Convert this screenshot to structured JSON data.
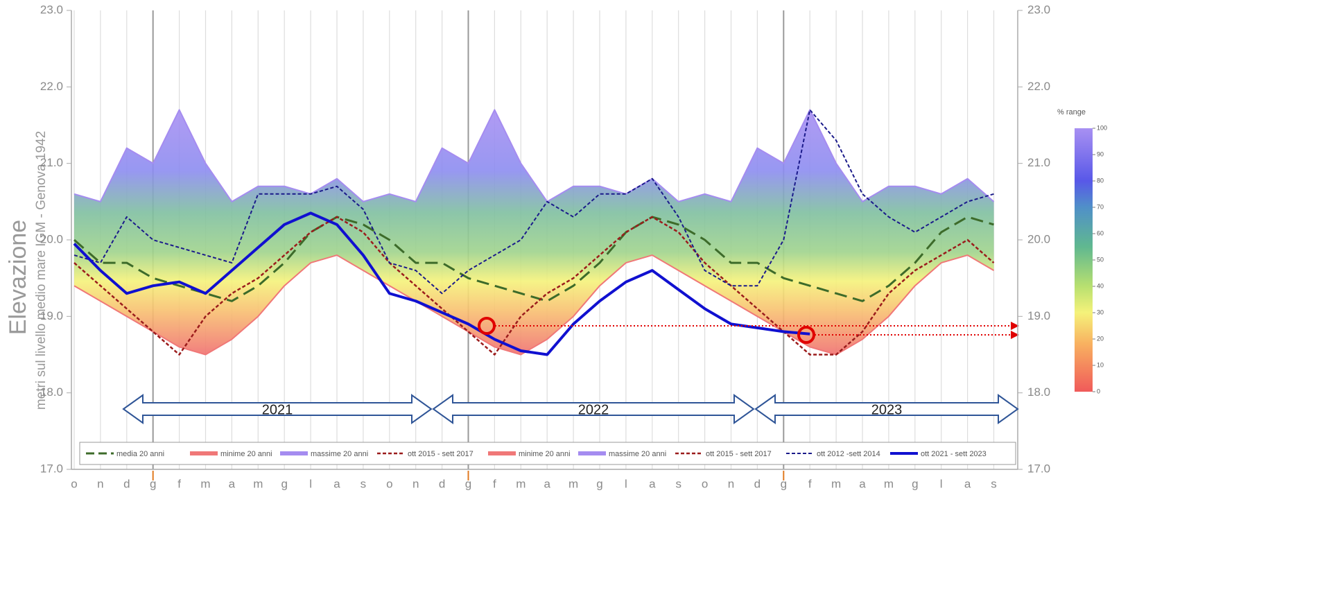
{
  "chart_data": {
    "type": "line",
    "y_label_main": "Elevazione",
    "y_label_sub": "metri  sul livello medio mare  IGM  -  Genova  1942",
    "categories": [
      "o",
      "n",
      "d",
      "g",
      "f",
      "m",
      "a",
      "m",
      "g",
      "l",
      "a",
      "s",
      "o",
      "n",
      "d",
      "g",
      "f",
      "m",
      "a",
      "m",
      "g",
      "l",
      "a",
      "s",
      "o",
      "n",
      "d",
      "g",
      "f",
      "m",
      "a",
      "m",
      "g",
      "l",
      "a",
      "s"
    ],
    "ylim": [
      17,
      23
    ],
    "yticks": [
      {
        "value": 17,
        "label": "17.0"
      },
      {
        "value": 18,
        "label": "18.0"
      },
      {
        "value": 19,
        "label": "19.0"
      },
      {
        "value": 20,
        "label": "20.0"
      },
      {
        "value": 21,
        "label": "21.0"
      },
      {
        "value": 22,
        "label": "22.0"
      },
      {
        "value": 23,
        "label": "23.0"
      }
    ],
    "series": [
      {
        "name": "media 20 anni",
        "color": "#3d6b2a",
        "values": [
          20.0,
          19.7,
          19.7,
          19.5,
          19.4,
          19.3,
          19.2,
          19.4,
          19.7,
          20.1,
          20.3,
          20.2,
          20.0,
          19.7,
          19.7,
          19.5,
          19.4,
          19.3,
          19.2,
          19.4,
          19.7,
          20.1,
          20.3,
          20.2,
          20.0,
          19.7,
          19.7,
          19.5,
          19.4,
          19.3,
          19.2,
          19.4,
          19.7,
          20.1,
          20.3,
          20.2
        ]
      },
      {
        "name": "minime 20 anni",
        "color": "#f07878",
        "values": [
          19.4,
          19.2,
          19.0,
          18.8,
          18.6,
          18.5,
          18.7,
          19.0,
          19.4,
          19.7,
          19.8,
          19.6,
          19.4,
          19.2,
          19.0,
          18.8,
          18.6,
          18.5,
          18.7,
          19.0,
          19.4,
          19.7,
          19.8,
          19.6,
          19.4,
          19.2,
          19.0,
          18.8,
          18.6,
          18.5,
          18.7,
          19.0,
          19.4,
          19.7,
          19.8,
          19.6
        ]
      },
      {
        "name": "massime 20 anni",
        "color": "#a58cf0",
        "values": [
          20.6,
          20.5,
          21.2,
          21.0,
          21.7,
          21.0,
          20.5,
          20.7,
          20.7,
          20.6,
          20.8,
          20.5,
          20.6,
          20.5,
          21.2,
          21.0,
          21.7,
          21.0,
          20.5,
          20.7,
          20.7,
          20.6,
          20.8,
          20.5,
          20.6,
          20.5,
          21.2,
          21.0,
          21.7,
          21.0,
          20.5,
          20.7,
          20.7,
          20.6,
          20.8,
          20.5
        ]
      },
      {
        "name": "ott 2015 - sett 2017",
        "color": "#9b1c1c",
        "values": [
          19.7,
          19.4,
          19.1,
          18.8,
          18.5,
          19.0,
          19.3,
          19.5,
          19.8,
          20.1,
          20.3,
          20.1,
          19.7,
          19.4,
          19.1,
          18.8,
          18.5,
          19.0,
          19.3,
          19.5,
          19.8,
          20.1,
          20.3,
          20.1,
          19.7,
          19.4,
          19.1,
          18.8,
          18.5,
          18.5,
          18.8,
          19.3,
          19.6,
          19.8,
          20.0,
          19.7
        ]
      },
      {
        "name": "ott 2012 -sett 2014",
        "color": "#1a1a8a",
        "values": [
          19.8,
          19.7,
          20.3,
          20.0,
          19.9,
          19.8,
          19.7,
          20.6,
          20.6,
          20.6,
          20.7,
          20.4,
          19.7,
          19.6,
          19.3,
          19.6,
          19.8,
          20.0,
          20.5,
          20.3,
          20.6,
          20.6,
          20.8,
          20.3,
          19.6,
          19.4,
          19.4,
          20.0,
          21.7,
          21.3,
          20.6,
          20.3,
          20.1,
          20.3,
          20.5,
          20.6
        ]
      },
      {
        "name": "ott 2021 - sett 2023",
        "color": "#1010d0",
        "values": [
          19.95,
          19.6,
          19.3,
          19.4,
          19.45,
          19.3,
          19.6,
          19.9,
          20.2,
          20.35,
          20.2,
          19.8,
          19.3,
          19.2,
          19.05,
          18.9,
          18.7,
          18.55,
          18.5,
          18.9,
          19.2,
          19.45,
          19.6,
          19.35,
          19.1,
          18.9,
          18.85,
          18.8,
          18.77,
          null,
          null,
          null,
          null,
          null,
          null,
          null
        ]
      }
    ],
    "annotations": [
      "2021",
      "2022",
      "2023"
    ],
    "colorbar": {
      "title": "% range",
      "ticks": [
        0,
        10,
        20,
        30,
        40,
        50,
        60,
        70,
        80,
        90,
        100
      ]
    }
  }
}
